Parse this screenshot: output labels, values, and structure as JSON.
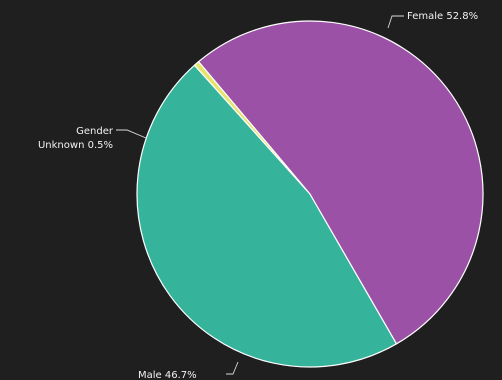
{
  "chart_data": {
    "type": "pie",
    "slices": [
      {
        "label": "Female",
        "value": 52.8,
        "display": "Female 52.8%",
        "color": "#9b51a6"
      },
      {
        "label": "Male",
        "value": 46.7,
        "display": "Male 46.7%",
        "color": "#35b39b"
      },
      {
        "label": "Gender Unknown",
        "value": 0.5,
        "display_lines": [
          "Gender",
          "Unknown 0.5%"
        ],
        "color": "#e6e36b"
      }
    ],
    "background": "#1f1f1f",
    "slice_border_color": "#ffffff"
  }
}
